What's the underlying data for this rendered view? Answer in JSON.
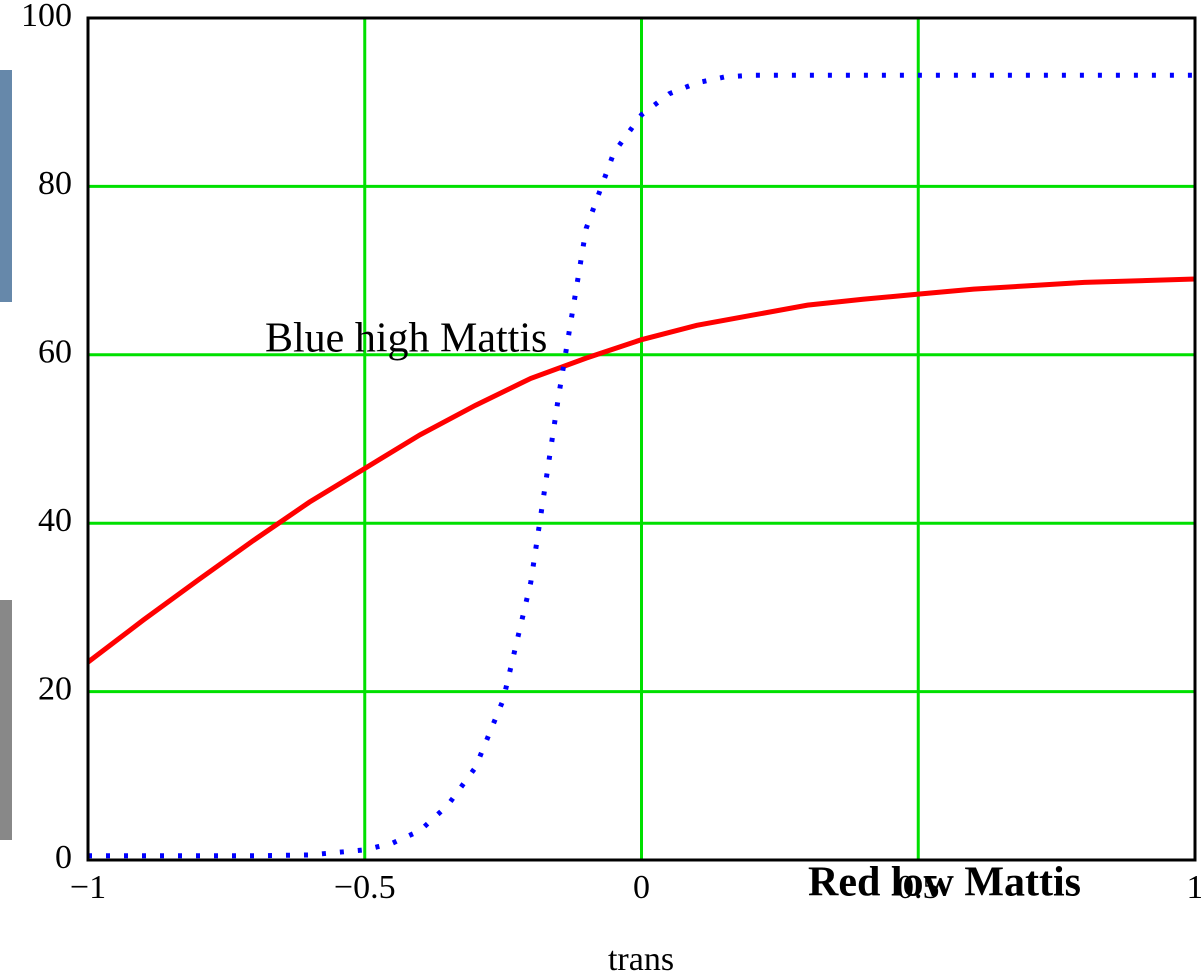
{
  "chart_data": {
    "type": "line",
    "xlabel": "trans",
    "xlim": [
      -1,
      1
    ],
    "ylim": [
      0,
      100
    ],
    "xticks": [
      {
        "value": -1,
        "label": "−1"
      },
      {
        "value": -0.5,
        "label": "−0.5"
      },
      0,
      0.5,
      1
    ],
    "yticks": [
      0,
      20,
      40,
      60,
      80,
      100
    ],
    "grid": true,
    "grid_color": "#00e000",
    "series": [
      {
        "name": "Red low Mattis",
        "color": "#ff0000",
        "style": "solid",
        "x": [
          -1,
          -0.9,
          -0.8,
          -0.7,
          -0.6,
          -0.5,
          -0.4,
          -0.3,
          -0.2,
          -0.1,
          0,
          0.1,
          0.2,
          0.3,
          0.4,
          0.5,
          0.6,
          0.7,
          0.8,
          0.9,
          1
        ],
        "values": [
          23.5,
          28.5,
          33.3,
          38,
          42.5,
          46.5,
          50.5,
          54,
          57.2,
          59.6,
          61.8,
          63.5,
          64.7,
          65.9,
          66.6,
          67.2,
          67.8,
          68.2,
          68.6,
          68.8,
          69
        ]
      },
      {
        "name": "Blue high Mattis",
        "color": "#0000ff",
        "style": "dotted",
        "x": [
          -1,
          -0.9,
          -0.8,
          -0.7,
          -0.6,
          -0.5,
          -0.45,
          -0.4,
          -0.35,
          -0.3,
          -0.25,
          -0.2,
          -0.15,
          -0.1,
          -0.05,
          0,
          0.05,
          0.1,
          0.15,
          0.2,
          0.3,
          0.4,
          0.5,
          0.6,
          0.7,
          0.8,
          0.9,
          1
        ],
        "values": [
          0.5,
          0.5,
          0.5,
          0.5,
          0.6,
          1.2,
          2,
          3.5,
          6.5,
          11,
          19,
          33,
          55,
          75,
          84,
          88.5,
          91,
          92.3,
          93,
          93.2,
          93.2,
          93.2,
          93.2,
          93.2,
          93.2,
          93.2,
          93.2,
          93.2
        ]
      }
    ],
    "annotations": [
      {
        "text": "Blue high Mattis",
        "color": "#1a6fd0"
      },
      {
        "text": "Red low Mattis",
        "color": "#ff3c00"
      }
    ]
  }
}
